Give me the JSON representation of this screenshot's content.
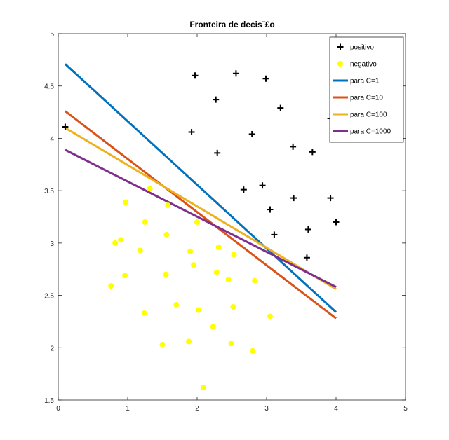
{
  "chart_data": {
    "type": "scatter",
    "title": "Fronteira de decis˜£o",
    "xlabel": "",
    "ylabel": "",
    "xlim": [
      0,
      5
    ],
    "ylim": [
      1.5,
      5
    ],
    "xticks": [
      "0",
      "1",
      "2",
      "3",
      "4",
      "5"
    ],
    "yticks": [
      "1.5",
      "2",
      "2.5",
      "3",
      "3.5",
      "4",
      "4.5",
      "5"
    ],
    "grid": false,
    "legend_position": "top-right",
    "series": [
      {
        "name": "positivo",
        "kind": "points",
        "marker": "plus",
        "color": "#000000",
        "points": [
          [
            0.1,
            4.11
          ],
          [
            1.97,
            4.6
          ],
          [
            2.56,
            4.62
          ],
          [
            2.99,
            4.57
          ],
          [
            2.27,
            4.37
          ],
          [
            3.2,
            4.29
          ],
          [
            1.92,
            4.06
          ],
          [
            2.79,
            4.04
          ],
          [
            2.29,
            3.86
          ],
          [
            3.38,
            3.92
          ],
          [
            3.66,
            3.87
          ],
          [
            3.92,
            4.19
          ],
          [
            2.67,
            3.51
          ],
          [
            2.94,
            3.55
          ],
          [
            3.05,
            3.32
          ],
          [
            3.39,
            3.43
          ],
          [
            3.92,
            3.43
          ],
          [
            4.0,
            3.2
          ],
          [
            3.6,
            3.13
          ],
          [
            3.11,
            3.08
          ],
          [
            3.58,
            2.86
          ]
        ]
      },
      {
        "name": "negativo",
        "kind": "points",
        "marker": "circle",
        "color": "#ffff00",
        "points": [
          [
            1.32,
            3.52
          ],
          [
            0.97,
            3.39
          ],
          [
            1.58,
            3.36
          ],
          [
            2.0,
            3.2
          ],
          [
            1.25,
            3.2
          ],
          [
            1.56,
            3.08
          ],
          [
            0.9,
            3.03
          ],
          [
            0.82,
            3.0
          ],
          [
            1.18,
            2.93
          ],
          [
            2.31,
            2.96
          ],
          [
            1.9,
            2.92
          ],
          [
            2.53,
            2.89
          ],
          [
            1.95,
            2.79
          ],
          [
            2.28,
            2.72
          ],
          [
            1.55,
            2.7
          ],
          [
            0.96,
            2.69
          ],
          [
            2.45,
            2.65
          ],
          [
            2.83,
            2.64
          ],
          [
            0.76,
            2.59
          ],
          [
            1.7,
            2.41
          ],
          [
            2.52,
            2.39
          ],
          [
            2.02,
            2.36
          ],
          [
            1.24,
            2.33
          ],
          [
            3.05,
            2.3
          ],
          [
            2.23,
            2.2
          ],
          [
            1.88,
            2.06
          ],
          [
            1.5,
            2.03
          ],
          [
            2.49,
            2.04
          ],
          [
            2.8,
            1.97
          ],
          [
            2.09,
            1.62
          ]
        ]
      },
      {
        "name": "para C=1",
        "kind": "line",
        "color": "#0072bd",
        "points": [
          [
            0.1,
            4.71
          ],
          [
            4.0,
            2.34
          ]
        ]
      },
      {
        "name": "para C=10",
        "kind": "line",
        "color": "#d95319",
        "points": [
          [
            0.1,
            4.26
          ],
          [
            4.0,
            2.28
          ]
        ]
      },
      {
        "name": "para C=100",
        "kind": "line",
        "color": "#edb120",
        "points": [
          [
            0.1,
            4.1
          ],
          [
            4.0,
            2.56
          ]
        ]
      },
      {
        "name": "para C=1000",
        "kind": "line",
        "color": "#7e2f8e",
        "points": [
          [
            0.1,
            3.89
          ],
          [
            4.0,
            2.58
          ]
        ]
      }
    ]
  }
}
